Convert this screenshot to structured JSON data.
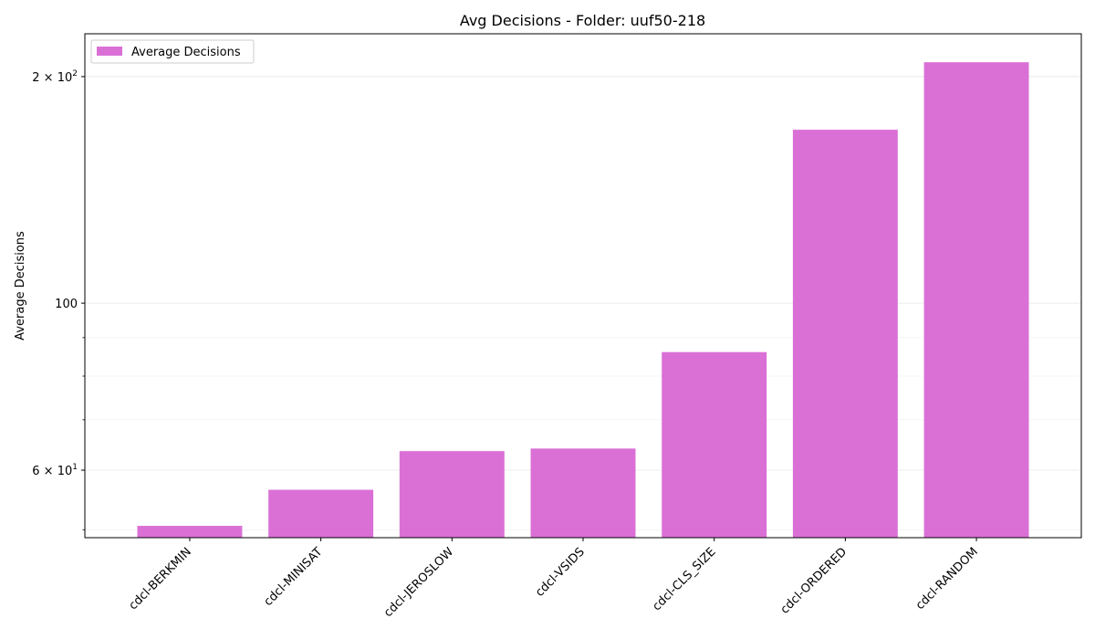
{
  "chart_data": {
    "type": "bar",
    "title": "Avg Decisions - Folder: uuf50-218",
    "xlabel": "",
    "ylabel": "Average Decisions",
    "yscale": "log",
    "ylim": [
      48.8,
      228
    ],
    "grid": true,
    "legend_position": "top-left",
    "categories": [
      "cdcl-BERKMIN",
      "cdcl-MINISAT",
      "cdcl-JEROSLOW",
      "cdcl-VSIDS",
      "cdcl-CLS_SIZE",
      "cdcl-ORDERED",
      "cdcl-RANDOM"
    ],
    "series": [
      {
        "name": "Average Decisions",
        "color": "#da70d6",
        "values": [
          50.6,
          56.5,
          63.6,
          64.1,
          86.1,
          170.0,
          209.0
        ]
      }
    ],
    "y_ticks": [
      {
        "value": 60,
        "base": "6",
        "times": " × ",
        "exp_base": "10",
        "exp": "1"
      },
      {
        "value": 100,
        "label": "100"
      },
      {
        "value": 200,
        "base": "2",
        "times": " × ",
        "exp_base": "10",
        "exp": "2"
      }
    ],
    "y_minor_ticks": [
      50,
      70,
      80,
      90
    ]
  }
}
